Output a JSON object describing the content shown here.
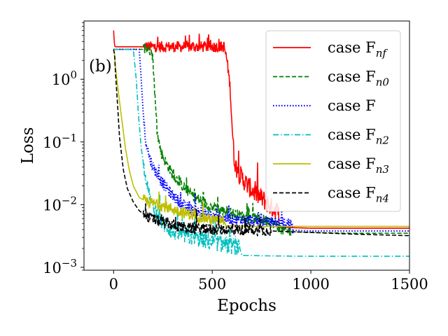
{
  "chart_data": {
    "type": "line",
    "panel_label": "(b)",
    "xlabel": "Epochs",
    "ylabel": "Loss",
    "xlim": [
      -150,
      1500
    ],
    "ylim": [
      0.0009,
      8.5
    ],
    "yscale": "log",
    "legend_position": "top-right",
    "x_ticks": [
      {
        "value": 0,
        "label": "0"
      },
      {
        "value": 500,
        "label": "500"
      },
      {
        "value": 1000,
        "label": "1000"
      },
      {
        "value": 1500,
        "label": "1500"
      }
    ],
    "y_ticks": [
      {
        "value": 1,
        "base": "10",
        "exp": "0"
      },
      {
        "value": 0.1,
        "base": "10",
        "exp": "−1"
      },
      {
        "value": 0.01,
        "base": "10",
        "exp": "−2"
      },
      {
        "value": 0.001,
        "base": "10",
        "exp": "−3"
      }
    ],
    "series": [
      {
        "name": "case F",
        "sub": "nf",
        "color": "#ff0000",
        "dash": "solid",
        "x": [
          0,
          5,
          10,
          100,
          300,
          500,
          560,
          575,
          590,
          600,
          610,
          620,
          640,
          680,
          720,
          760,
          800,
          830,
          840,
          900,
          1000,
          1200,
          1500
        ],
        "y": [
          6.0,
          3.4,
          3.3,
          3.3,
          3.3,
          3.3,
          3.3,
          2.0,
          0.8,
          0.2,
          0.06,
          0.04,
          0.03,
          0.02,
          0.015,
          0.012,
          0.009,
          0.008,
          0.0044,
          0.0043,
          0.0042,
          0.0042,
          0.0042
        ]
      },
      {
        "name": "case F",
        "sub": "n0",
        "color": "#008000",
        "dash": "dashed",
        "x": [
          0,
          5,
          100,
          190,
          200,
          210,
          220,
          240,
          260,
          300,
          350,
          400,
          450,
          500,
          600,
          700,
          800,
          850,
          900,
          1000,
          1200,
          1500
        ],
        "y": [
          3.0,
          3.0,
          3.0,
          3.0,
          2.0,
          0.5,
          0.15,
          0.07,
          0.05,
          0.03,
          0.02,
          0.014,
          0.011,
          0.009,
          0.0072,
          0.006,
          0.0055,
          0.004,
          0.0037,
          0.0036,
          0.0035,
          0.0035
        ]
      },
      {
        "name": "case F",
        "sub": "",
        "color": "#0000ff",
        "dash": "dotted",
        "x": [
          0,
          5,
          100,
          130,
          140,
          150,
          160,
          180,
          200,
          230,
          260,
          300,
          350,
          400,
          500,
          600,
          700,
          800,
          900,
          910,
          1000,
          1200,
          1500
        ],
        "y": [
          3.0,
          3.0,
          3.0,
          3.0,
          1.0,
          0.3,
          0.12,
          0.06,
          0.04,
          0.027,
          0.02,
          0.014,
          0.01,
          0.008,
          0.0065,
          0.0058,
          0.0055,
          0.0052,
          0.005,
          0.0039,
          0.0038,
          0.0038,
          0.0038
        ]
      },
      {
        "name": "case F",
        "sub": "n2",
        "color": "#00bfbf",
        "dash": "dashdot",
        "x": [
          0,
          5,
          100,
          115,
          125,
          140,
          160,
          180,
          200,
          250,
          300,
          400,
          500,
          600,
          640,
          650,
          800,
          1000,
          1200,
          1500
        ],
        "y": [
          3.0,
          3.0,
          3.0,
          1.0,
          0.3,
          0.08,
          0.03,
          0.015,
          0.009,
          0.005,
          0.0037,
          0.003,
          0.0025,
          0.0022,
          0.002,
          0.00155,
          0.00152,
          0.0015,
          0.0015,
          0.0015
        ]
      },
      {
        "name": "case F",
        "sub": "n3",
        "color": "#bfbf00",
        "dash": "solid",
        "x": [
          0,
          5,
          10,
          20,
          40,
          60,
          80,
          100,
          130,
          160,
          200,
          250,
          300,
          350,
          400,
          450,
          500,
          560,
          570,
          700,
          900,
          1200,
          1500
        ],
        "y": [
          3.0,
          2.5,
          1.5,
          0.8,
          0.25,
          0.08,
          0.035,
          0.02,
          0.013,
          0.0115,
          0.0105,
          0.0095,
          0.0085,
          0.0075,
          0.0068,
          0.0062,
          0.0057,
          0.0055,
          0.0046,
          0.0045,
          0.0045,
          0.0045,
          0.0045
        ]
      },
      {
        "name": "case F",
        "sub": "n4",
        "color": "#000000",
        "dash": "dashed",
        "x": [
          0,
          5,
          10,
          20,
          30,
          50,
          70,
          100,
          130,
          160,
          200,
          250,
          300,
          350,
          400,
          500,
          600,
          700,
          800,
          1000,
          1200,
          1500
        ],
        "y": [
          3.0,
          2.5,
          1.2,
          0.4,
          0.12,
          0.035,
          0.018,
          0.011,
          0.008,
          0.0068,
          0.0058,
          0.0052,
          0.0047,
          0.0044,
          0.0042,
          0.004,
          0.004,
          0.0039,
          0.0038,
          0.0036,
          0.0034,
          0.0032
        ]
      }
    ]
  }
}
